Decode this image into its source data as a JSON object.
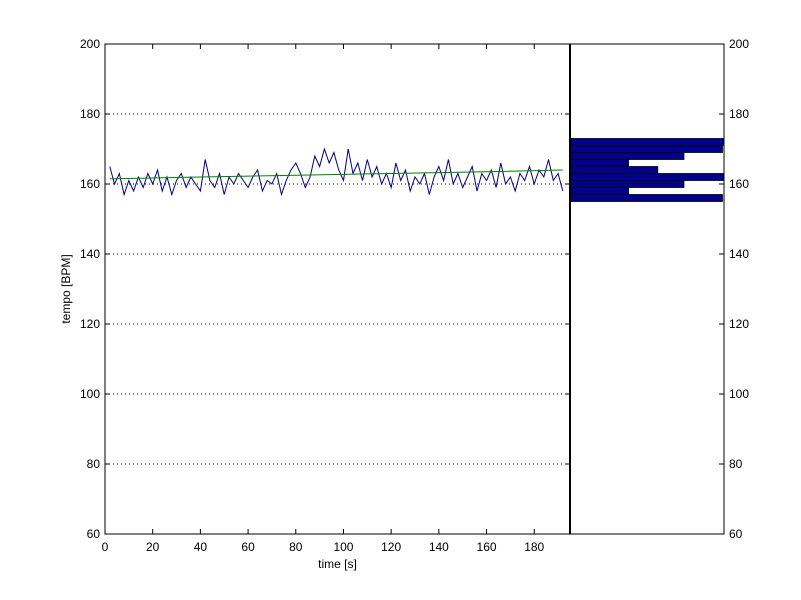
{
  "chart_data": [
    {
      "type": "line",
      "xlabel": "time [s]",
      "ylabel": "tempo [BPM]",
      "xlim": [
        0,
        195
      ],
      "ylim": [
        60,
        200
      ],
      "x_ticks": [
        0,
        20,
        40,
        60,
        80,
        100,
        120,
        140,
        160,
        180
      ],
      "y_ticks": [
        60,
        80,
        100,
        120,
        140,
        160,
        180,
        200
      ],
      "grid": "horizontal dotted",
      "series": [
        {
          "color": "#00008b",
          "x": [
            2,
            4,
            6,
            8,
            10,
            12,
            14,
            16,
            18,
            20,
            22,
            24,
            26,
            28,
            30,
            32,
            34,
            36,
            38,
            40,
            42,
            44,
            46,
            48,
            50,
            52,
            54,
            56,
            58,
            60,
            62,
            64,
            66,
            68,
            70,
            72,
            74,
            76,
            78,
            80,
            82,
            84,
            86,
            88,
            90,
            92,
            94,
            96,
            98,
            100,
            102,
            104,
            106,
            108,
            110,
            112,
            114,
            116,
            118,
            120,
            122,
            124,
            126,
            128,
            130,
            132,
            134,
            136,
            138,
            140,
            142,
            144,
            146,
            148,
            150,
            152,
            154,
            156,
            158,
            160,
            162,
            164,
            166,
            168,
            170,
            172,
            174,
            176,
            178,
            180,
            182,
            184,
            186,
            188,
            190,
            192
          ],
          "values": [
            165,
            160,
            163,
            157,
            161,
            158,
            162,
            159,
            163,
            160,
            164,
            158,
            162,
            157,
            161,
            163,
            159,
            162,
            160,
            158,
            167,
            161,
            159,
            163,
            157,
            162,
            160,
            163,
            161,
            159,
            162,
            164,
            158,
            161,
            160,
            163,
            157,
            161,
            164,
            166,
            163,
            159,
            162,
            168,
            165,
            170,
            166,
            169,
            164,
            161,
            170,
            163,
            166,
            161,
            167,
            162,
            165,
            160,
            163,
            159,
            166,
            161,
            164,
            158,
            162,
            160,
            163,
            157,
            162,
            165,
            161,
            167,
            160,
            163,
            159,
            162,
            165,
            158,
            163,
            161,
            164,
            159,
            166,
            160,
            162,
            158,
            163,
            161,
            165,
            160,
            164,
            162,
            167,
            161,
            163,
            158
          ]
        },
        {
          "color": "#008000",
          "x": [
            2,
            40,
            80,
            120,
            160,
            192
          ],
          "values": [
            161.5,
            162,
            162.5,
            163,
            163.5,
            164
          ]
        }
      ]
    },
    {
      "type": "bar",
      "orientation": "horizontal",
      "ylim": [
        60,
        200
      ],
      "y_ticks": [
        60,
        80,
        100,
        120,
        140,
        160,
        180,
        200
      ],
      "color": "#00008b",
      "bins": [
        {
          "from": 155,
          "to": 157,
          "count": 0.99
        },
        {
          "from": 157,
          "to": 159,
          "count": 0.38
        },
        {
          "from": 159,
          "to": 161,
          "count": 0.74
        },
        {
          "from": 161,
          "to": 163,
          "count": 1.0
        },
        {
          "from": 163,
          "to": 165,
          "count": 0.57
        },
        {
          "from": 165,
          "to": 167,
          "count": 0.38
        },
        {
          "from": 167,
          "to": 169,
          "count": 0.74
        },
        {
          "from": 169,
          "to": 171,
          "count": 0.99
        },
        {
          "from": 171,
          "to": 173,
          "count": 1.0
        }
      ]
    }
  ]
}
